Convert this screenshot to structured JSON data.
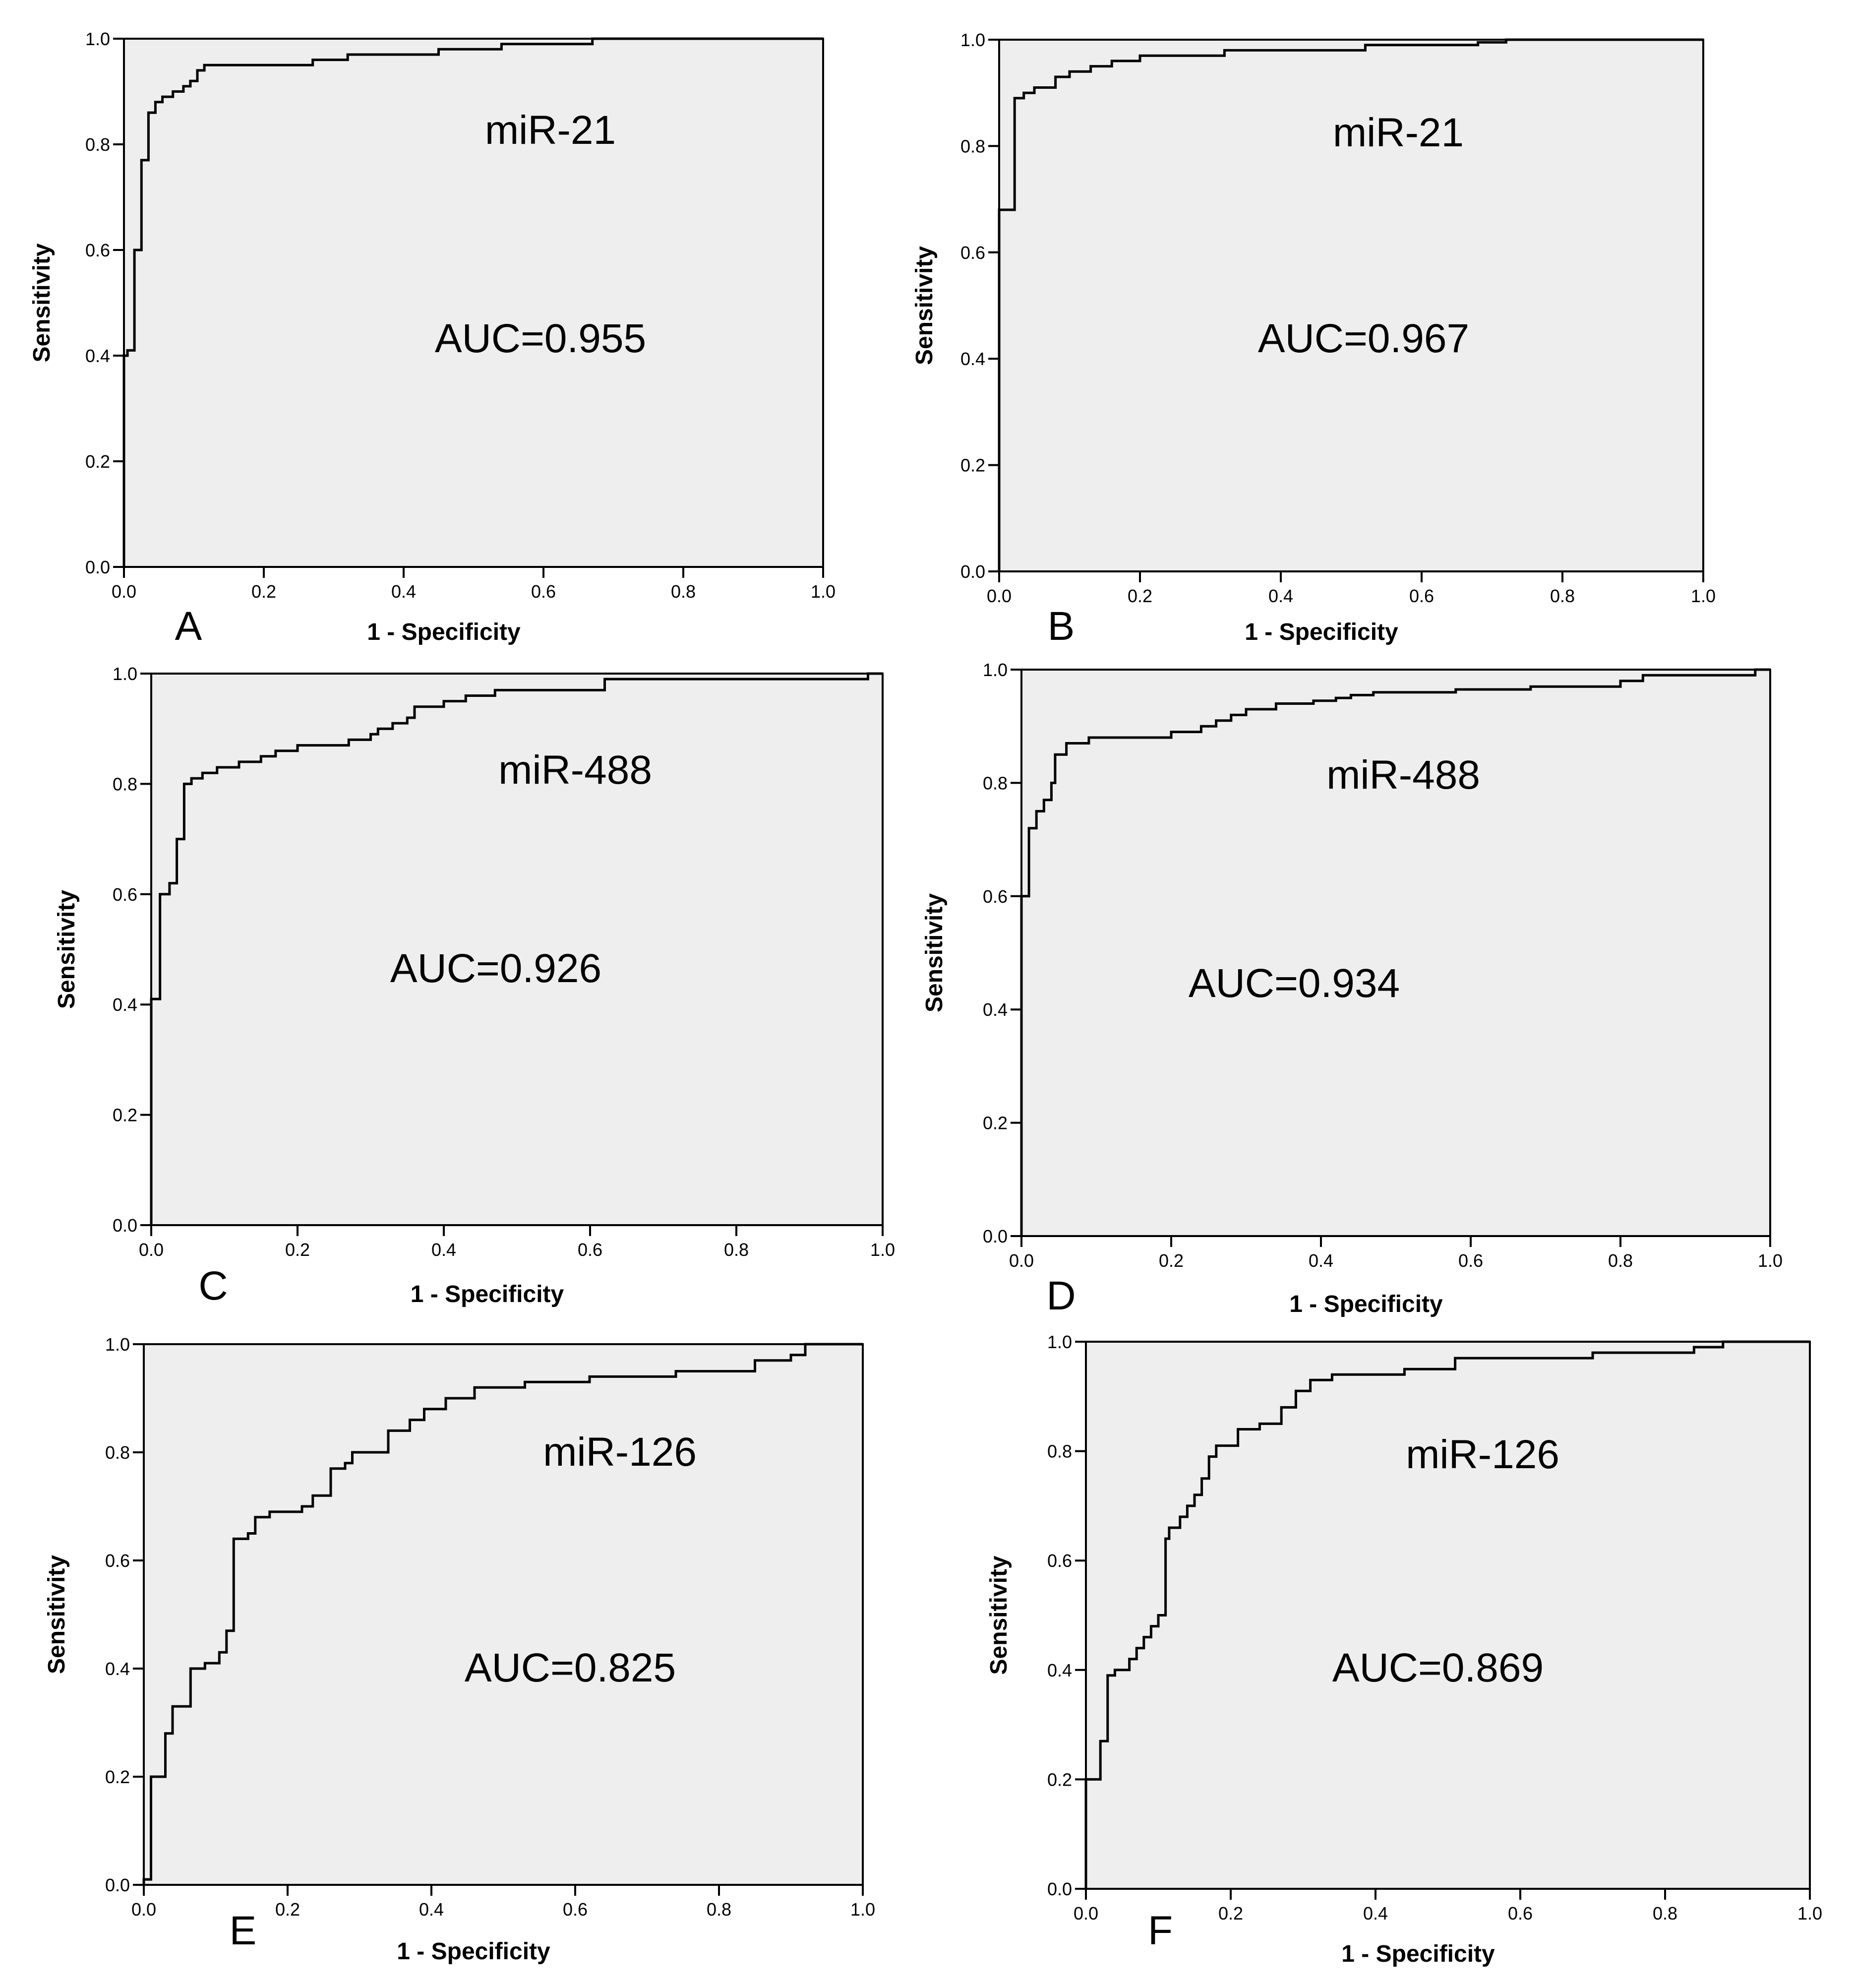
{
  "chart_data": [
    {
      "type": "line",
      "panel_label": "A",
      "annotation": "miR-21",
      "auc_label": "AUC=0.955",
      "xlabel": "1 - Specificity",
      "ylabel": "Sensitivity",
      "xlim": [
        0,
        1
      ],
      "ylim": [
        0,
        1
      ],
      "x_ticks": [
        "0.0",
        "0.2",
        "0.4",
        "0.6",
        "0.8",
        "1.0"
      ],
      "y_ticks": [
        "0.0",
        "0.2",
        "0.4",
        "0.6",
        "0.8",
        "1.0"
      ],
      "x": [
        0.0,
        0.0,
        0.005,
        0.005,
        0.015,
        0.015,
        0.025,
        0.025,
        0.035,
        0.035,
        0.045,
        0.045,
        0.055,
        0.055,
        0.07,
        0.07,
        0.085,
        0.085,
        0.095,
        0.095,
        0.105,
        0.105,
        0.115,
        0.115,
        0.27,
        0.27,
        0.32,
        0.32,
        0.45,
        0.45,
        0.54,
        0.54,
        0.67,
        0.67,
        1.0
      ],
      "y": [
        0.0,
        0.4,
        0.4,
        0.41,
        0.41,
        0.6,
        0.6,
        0.77,
        0.77,
        0.86,
        0.86,
        0.88,
        0.88,
        0.89,
        0.89,
        0.9,
        0.9,
        0.91,
        0.91,
        0.92,
        0.92,
        0.94,
        0.94,
        0.95,
        0.95,
        0.96,
        0.96,
        0.97,
        0.97,
        0.98,
        0.98,
        0.99,
        0.99,
        1.0,
        1.0
      ]
    },
    {
      "type": "line",
      "panel_label": "B",
      "annotation": "miR-21",
      "auc_label": "AUC=0.967",
      "xlabel": "1 - Specificity",
      "ylabel": "Sensitivity",
      "xlim": [
        0,
        1
      ],
      "ylim": [
        0,
        1
      ],
      "x_ticks": [
        "0.0",
        "0.2",
        "0.4",
        "0.6",
        "0.8",
        "1.0"
      ],
      "y_ticks": [
        "0.0",
        "0.2",
        "0.4",
        "0.6",
        "0.8",
        "1.0"
      ],
      "x": [
        0.0,
        0.0,
        0.022,
        0.022,
        0.035,
        0.035,
        0.05,
        0.05,
        0.08,
        0.08,
        0.1,
        0.1,
        0.13,
        0.13,
        0.16,
        0.16,
        0.2,
        0.2,
        0.32,
        0.32,
        0.52,
        0.52,
        0.68,
        0.68,
        0.72,
        0.72,
        1.0
      ],
      "y": [
        0.0,
        0.68,
        0.68,
        0.89,
        0.89,
        0.9,
        0.9,
        0.91,
        0.91,
        0.93,
        0.93,
        0.94,
        0.94,
        0.95,
        0.95,
        0.96,
        0.96,
        0.97,
        0.97,
        0.98,
        0.98,
        0.99,
        0.99,
        0.995,
        0.995,
        1.0,
        1.0
      ]
    },
    {
      "type": "line",
      "panel_label": "C",
      "annotation": "miR-488",
      "auc_label": "AUC=0.926",
      "xlabel": "1 - Specificity",
      "ylabel": "Sensitivity",
      "xlim": [
        0,
        1
      ],
      "ylim": [
        0,
        1
      ],
      "x_ticks": [
        "0.0",
        "0.2",
        "0.4",
        "0.6",
        "0.8",
        "1.0"
      ],
      "y_ticks": [
        "0.0",
        "0.2",
        "0.4",
        "0.6",
        "0.8",
        "1.0"
      ],
      "x": [
        0.0,
        0.0,
        0.012,
        0.012,
        0.025,
        0.025,
        0.035,
        0.035,
        0.045,
        0.045,
        0.055,
        0.055,
        0.07,
        0.07,
        0.09,
        0.09,
        0.12,
        0.12,
        0.15,
        0.15,
        0.17,
        0.17,
        0.2,
        0.2,
        0.27,
        0.27,
        0.3,
        0.3,
        0.31,
        0.31,
        0.33,
        0.33,
        0.35,
        0.35,
        0.36,
        0.36,
        0.4,
        0.4,
        0.43,
        0.43,
        0.47,
        0.47,
        0.62,
        0.62,
        0.98,
        0.98,
        1.0
      ],
      "y": [
        0.0,
        0.41,
        0.41,
        0.6,
        0.6,
        0.62,
        0.62,
        0.7,
        0.7,
        0.8,
        0.8,
        0.81,
        0.81,
        0.82,
        0.82,
        0.83,
        0.83,
        0.84,
        0.84,
        0.85,
        0.85,
        0.86,
        0.86,
        0.87,
        0.87,
        0.88,
        0.88,
        0.89,
        0.89,
        0.9,
        0.9,
        0.91,
        0.91,
        0.92,
        0.92,
        0.94,
        0.94,
        0.95,
        0.95,
        0.96,
        0.96,
        0.97,
        0.97,
        0.99,
        0.99,
        1.0,
        1.0
      ]
    },
    {
      "type": "line",
      "panel_label": "D",
      "annotation": "miR-488",
      "auc_label": "AUC=0.934",
      "xlabel": "1 - Specificity",
      "ylabel": "Sensitivity",
      "xlim": [
        0,
        1
      ],
      "ylim": [
        0,
        1
      ],
      "x_ticks": [
        "0.0",
        "0.2",
        "0.4",
        "0.6",
        "0.8",
        "1.0"
      ],
      "y_ticks": [
        "0.0",
        "0.2",
        "0.4",
        "0.6",
        "0.8",
        "1.0"
      ],
      "x": [
        0.0,
        0.0,
        0.01,
        0.01,
        0.02,
        0.02,
        0.03,
        0.03,
        0.04,
        0.04,
        0.045,
        0.045,
        0.06,
        0.06,
        0.09,
        0.09,
        0.2,
        0.2,
        0.24,
        0.24,
        0.26,
        0.26,
        0.28,
        0.28,
        0.3,
        0.3,
        0.34,
        0.34,
        0.39,
        0.39,
        0.42,
        0.42,
        0.44,
        0.44,
        0.47,
        0.47,
        0.58,
        0.58,
        0.68,
        0.68,
        0.8,
        0.8,
        0.83,
        0.83,
        0.98,
        0.98,
        1.0
      ],
      "y": [
        0.0,
        0.6,
        0.6,
        0.72,
        0.72,
        0.75,
        0.75,
        0.77,
        0.77,
        0.8,
        0.8,
        0.85,
        0.85,
        0.87,
        0.87,
        0.88,
        0.88,
        0.89,
        0.89,
        0.9,
        0.9,
        0.91,
        0.91,
        0.92,
        0.92,
        0.93,
        0.93,
        0.94,
        0.94,
        0.945,
        0.945,
        0.95,
        0.95,
        0.955,
        0.955,
        0.96,
        0.96,
        0.965,
        0.965,
        0.97,
        0.97,
        0.98,
        0.98,
        0.99,
        0.99,
        1.0,
        1.0
      ]
    },
    {
      "type": "line",
      "panel_label": "E",
      "annotation": "miR-126",
      "auc_label": "AUC=0.825",
      "xlabel": "1 - Specificity",
      "ylabel": "Sensitivity",
      "xlim": [
        0,
        1
      ],
      "ylim": [
        0,
        1
      ],
      "x_ticks": [
        "0.0",
        "0.2",
        "0.4",
        "0.6",
        "0.8",
        "1.0"
      ],
      "y_ticks": [
        "0.0",
        "0.2",
        "0.4",
        "0.6",
        "0.8",
        "1.0"
      ],
      "x": [
        0.0,
        0.0,
        0.01,
        0.01,
        0.03,
        0.03,
        0.04,
        0.04,
        0.065,
        0.065,
        0.085,
        0.085,
        0.105,
        0.105,
        0.115,
        0.115,
        0.125,
        0.125,
        0.145,
        0.145,
        0.155,
        0.155,
        0.175,
        0.175,
        0.22,
        0.22,
        0.235,
        0.235,
        0.26,
        0.26,
        0.28,
        0.28,
        0.29,
        0.29,
        0.34,
        0.34,
        0.37,
        0.37,
        0.39,
        0.39,
        0.42,
        0.42,
        0.46,
        0.46,
        0.53,
        0.53,
        0.62,
        0.62,
        0.74,
        0.74,
        0.85,
        0.85,
        0.9,
        0.9,
        0.92,
        0.92,
        1.0
      ],
      "y": [
        0.0,
        0.01,
        0.01,
        0.2,
        0.2,
        0.28,
        0.28,
        0.33,
        0.33,
        0.4,
        0.4,
        0.41,
        0.41,
        0.43,
        0.43,
        0.47,
        0.47,
        0.64,
        0.64,
        0.65,
        0.65,
        0.68,
        0.68,
        0.69,
        0.69,
        0.7,
        0.7,
        0.72,
        0.72,
        0.77,
        0.77,
        0.78,
        0.78,
        0.8,
        0.8,
        0.84,
        0.84,
        0.86,
        0.86,
        0.88,
        0.88,
        0.9,
        0.9,
        0.92,
        0.92,
        0.93,
        0.93,
        0.94,
        0.94,
        0.95,
        0.95,
        0.97,
        0.97,
        0.98,
        0.98,
        1.0,
        1.0
      ]
    },
    {
      "type": "line",
      "panel_label": "F",
      "annotation": "miR-126",
      "auc_label": "AUC=0.869",
      "xlabel": "1 - Specificity",
      "ylabel": "Sensitivity",
      "xlim": [
        0,
        1
      ],
      "ylim": [
        0,
        1
      ],
      "x_ticks": [
        "0.0",
        "0.2",
        "0.4",
        "0.6",
        "0.8",
        "1.0"
      ],
      "y_ticks": [
        "0.0",
        "0.2",
        "0.4",
        "0.6",
        "0.8",
        "1.0"
      ],
      "x": [
        0.0,
        0.0,
        0.02,
        0.02,
        0.03,
        0.03,
        0.04,
        0.04,
        0.06,
        0.06,
        0.07,
        0.07,
        0.08,
        0.08,
        0.09,
        0.09,
        0.1,
        0.1,
        0.11,
        0.11,
        0.115,
        0.115,
        0.13,
        0.13,
        0.14,
        0.14,
        0.15,
        0.15,
        0.16,
        0.16,
        0.17,
        0.17,
        0.18,
        0.18,
        0.21,
        0.21,
        0.24,
        0.24,
        0.27,
        0.27,
        0.29,
        0.29,
        0.31,
        0.31,
        0.34,
        0.34,
        0.44,
        0.44,
        0.51,
        0.51,
        0.7,
        0.7,
        0.84,
        0.84,
        0.88,
        0.88,
        1.0
      ],
      "y": [
        0.0,
        0.2,
        0.2,
        0.27,
        0.27,
        0.39,
        0.39,
        0.4,
        0.4,
        0.42,
        0.42,
        0.44,
        0.44,
        0.46,
        0.46,
        0.48,
        0.48,
        0.5,
        0.5,
        0.64,
        0.64,
        0.66,
        0.66,
        0.68,
        0.68,
        0.7,
        0.7,
        0.72,
        0.72,
        0.75,
        0.75,
        0.79,
        0.79,
        0.81,
        0.81,
        0.84,
        0.84,
        0.85,
        0.85,
        0.88,
        0.88,
        0.91,
        0.91,
        0.93,
        0.93,
        0.94,
        0.94,
        0.95,
        0.95,
        0.97,
        0.97,
        0.98,
        0.98,
        0.99,
        0.99,
        1.0,
        1.0
      ]
    }
  ],
  "colors": {
    "plot_background": "#eeeeee",
    "curve": "#000000",
    "frame": "#000000"
  }
}
